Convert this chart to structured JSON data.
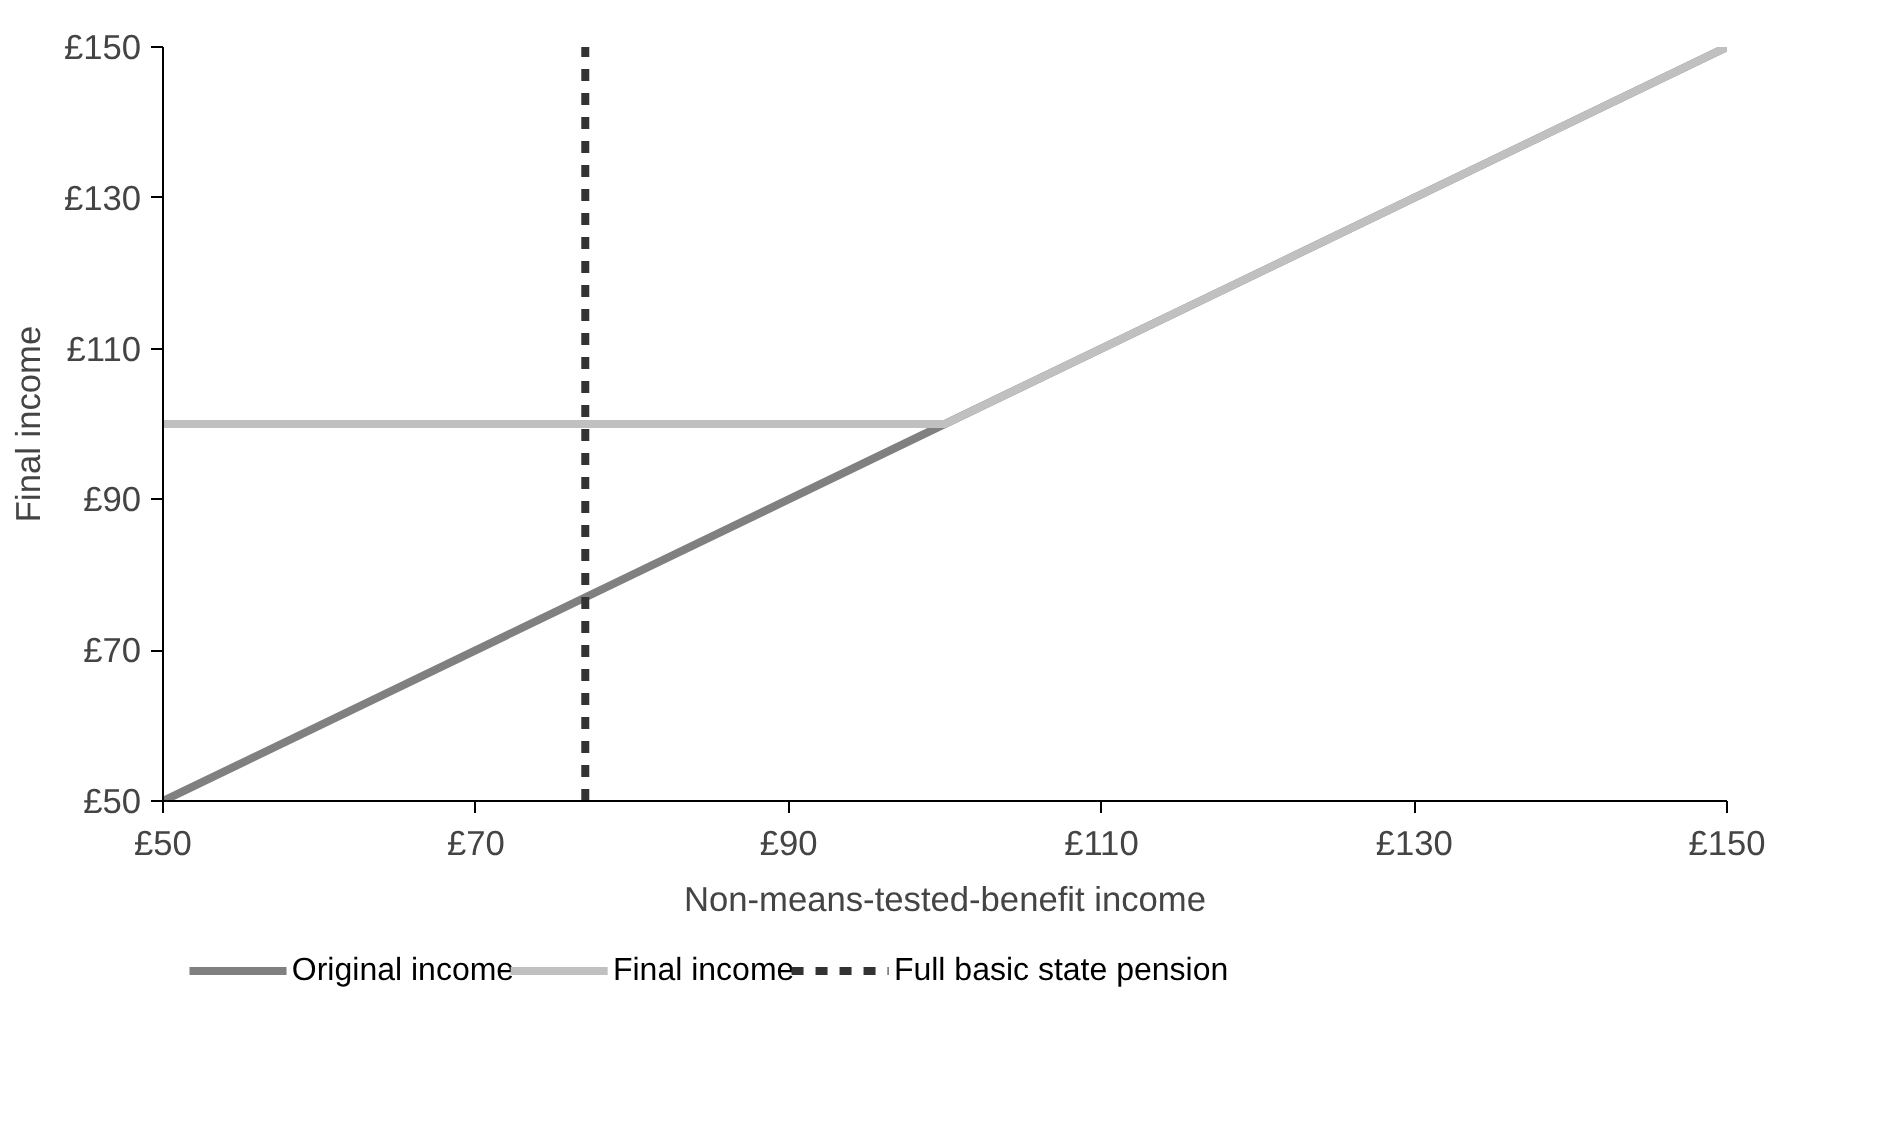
{
  "chart_data": {
    "type": "line",
    "xlabel": "Non-means-tested-benefit income",
    "ylabel": "Final income",
    "xlim": [
      50,
      150
    ],
    "xticks": [
      {
        "value": 50,
        "label": "£50"
      },
      {
        "value": 70,
        "label": "£70"
      },
      {
        "value": 90,
        "label": "£90"
      },
      {
        "value": 110,
        "label": "£110"
      },
      {
        "value": 130,
        "label": "£130"
      },
      {
        "value": 150,
        "label": "£150"
      }
    ],
    "ylim": [
      50,
      150
    ],
    "yticks": [
      {
        "value": 50,
        "label": "£50"
      },
      {
        "value": 70,
        "label": "£70"
      },
      {
        "value": 90,
        "label": "£90"
      },
      {
        "value": 110,
        "label": "£110"
      },
      {
        "value": 130,
        "label": "£130"
      },
      {
        "value": 150,
        "label": "£150"
      }
    ],
    "grid": false,
    "legend": "bottom",
    "series": [
      {
        "name": "Original income",
        "color": "#808080",
        "x": [
          50,
          150
        ],
        "values": [
          50,
          150
        ],
        "line_style": "solid"
      },
      {
        "name": "Final income",
        "color": "#c0c0c0",
        "x": [
          50,
          100,
          150
        ],
        "values": [
          100,
          100,
          150
        ],
        "line_style": "solid"
      },
      {
        "name": "Full basic state pension",
        "color": "#333333",
        "x": [
          77,
          77
        ],
        "values": [
          50,
          150
        ],
        "line_style": "dashed"
      }
    ]
  }
}
